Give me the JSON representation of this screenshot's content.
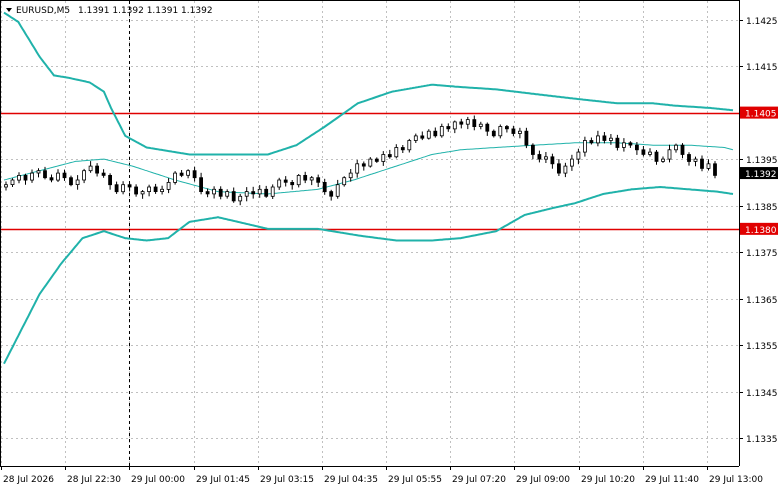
{
  "title": {
    "symbol": "EURUSD,M5",
    "ohlc": "1.1391 1.1392 1.1391 1.1392",
    "menu_icon": "triangle-down-icon"
  },
  "colors": {
    "background": "#ffffff",
    "grid": "#c0c0c0",
    "axis": "#000000",
    "bollinger": "#20b2aa",
    "hline": "#e00000",
    "hline_label_text": "#ffffff",
    "price_label_bg": "#000000",
    "price_label_text": "#ffffff",
    "candle_up": "#ffffff",
    "candle_down": "#000000"
  },
  "chart_data": {
    "type": "candlestick",
    "timeframe": "M5",
    "ylim": [
      1.1329,
      1.1429
    ],
    "yticks": [
      "1.1425",
      "1.1415",
      "1.1405",
      "1.1395",
      "1.1385",
      "1.1375",
      "1.1365",
      "1.1355",
      "1.1345",
      "1.1335"
    ],
    "xticks": [
      "28 Jul 2026",
      "28 Jul 22:30",
      "29 Jul 00:00",
      "29 Jul 01:45",
      "29 Jul 03:15",
      "29 Jul 04:35",
      "29 Jul 05:55",
      "29 Jul 07:20",
      "29 Jul 09:00",
      "29 Jul 10:20",
      "29 Jul 11:40",
      "29 Jul 13:00"
    ],
    "grid": true,
    "current_price": "1.1392",
    "hlines": [
      {
        "label": "1.1405",
        "value": 1.1405
      },
      {
        "label": "1.1380",
        "value": 1.138
      }
    ],
    "vline_at": "29 Jul 00:00",
    "close": [
      1.13895,
      1.13905,
      1.13915,
      1.13905,
      1.1392,
      1.13925,
      1.1391,
      1.13905,
      1.1392,
      1.1391,
      1.13895,
      1.13905,
      1.13925,
      1.13935,
      1.1392,
      1.13915,
      1.13895,
      1.1388,
      1.13895,
      1.1389,
      1.13875,
      1.1388,
      1.1389,
      1.1388,
      1.13885,
      1.139,
      1.1392,
      1.13915,
      1.13925,
      1.1391,
      1.1388,
      1.13875,
      1.13885,
      1.1387,
      1.1388,
      1.1386,
      1.1387,
      1.1388,
      1.13875,
      1.13885,
      1.1387,
      1.1389,
      1.13905,
      1.139,
      1.13895,
      1.13915,
      1.13905,
      1.1391,
      1.139,
      1.1388,
      1.1387,
      1.13895,
      1.1391,
      1.1392,
      1.1394,
      1.13935,
      1.1395,
      1.13945,
      1.1396,
      1.13955,
      1.13975,
      1.1397,
      1.1399,
      1.14,
      1.13995,
      1.1401,
      1.14,
      1.1402,
      1.14015,
      1.1403,
      1.14025,
      1.14035,
      1.1402,
      1.14025,
      1.1401,
      1.14,
      1.1402,
      1.14015,
      1.14005,
      1.1401,
      1.1398,
      1.1396,
      1.1395,
      1.13955,
      1.1394,
      1.1392,
      1.13935,
      1.1395,
      1.13965,
      1.1399,
      1.13985,
      1.14,
      1.1399,
      1.13995,
      1.13975,
      1.13985,
      1.1398,
      1.1397,
      1.1396,
      1.13965,
      1.13945,
      1.1395,
      1.1397,
      1.1398,
      1.1396,
      1.13945,
      1.1395,
      1.1393,
      1.1394,
      1.13915
    ],
    "bollinger_upper": [
      [
        0,
        1.14265
      ],
      [
        10,
        1.14245
      ],
      [
        25,
        1.1417
      ],
      [
        35,
        1.1413
      ],
      [
        45,
        1.14125
      ],
      [
        60,
        1.14115
      ],
      [
        70,
        1.14095
      ],
      [
        75,
        1.1406
      ],
      [
        85,
        1.14
      ],
      [
        100,
        1.13975
      ],
      [
        130,
        1.1396
      ],
      [
        160,
        1.1396
      ],
      [
        185,
        1.1396
      ],
      [
        205,
        1.1398
      ],
      [
        225,
        1.1402
      ],
      [
        248,
        1.1407
      ],
      [
        272,
        1.14095
      ],
      [
        300,
        1.1411
      ],
      [
        320,
        1.14105
      ],
      [
        345,
        1.141
      ],
      [
        372,
        1.1409
      ],
      [
        400,
        1.1408
      ],
      [
        430,
        1.1407
      ],
      [
        455,
        1.1407
      ],
      [
        470,
        1.14065
      ],
      [
        495,
        1.1406
      ],
      [
        511,
        1.14055
      ]
    ],
    "bollinger_middle": [
      [
        0,
        1.13905
      ],
      [
        25,
        1.13925
      ],
      [
        50,
        1.13945
      ],
      [
        70,
        1.1395
      ],
      [
        90,
        1.13935
      ],
      [
        120,
        1.13905
      ],
      [
        150,
        1.1388
      ],
      [
        185,
        1.13875
      ],
      [
        220,
        1.13885
      ],
      [
        245,
        1.13905
      ],
      [
        275,
        1.13935
      ],
      [
        300,
        1.1396
      ],
      [
        320,
        1.1397
      ],
      [
        345,
        1.13975
      ],
      [
        372,
        1.1398
      ],
      [
        400,
        1.13985
      ],
      [
        430,
        1.13985
      ],
      [
        455,
        1.1398
      ],
      [
        480,
        1.1398
      ],
      [
        505,
        1.13975
      ],
      [
        511,
        1.1397
      ]
    ],
    "bollinger_lower": [
      [
        0,
        1.1351
      ],
      [
        10,
        1.1357
      ],
      [
        25,
        1.1366
      ],
      [
        40,
        1.13725
      ],
      [
        55,
        1.1378
      ],
      [
        70,
        1.13795
      ],
      [
        85,
        1.1378
      ],
      [
        100,
        1.13775
      ],
      [
        115,
        1.1378
      ],
      [
        130,
        1.13815
      ],
      [
        150,
        1.13825
      ],
      [
        185,
        1.138
      ],
      [
        220,
        1.138
      ],
      [
        250,
        1.13785
      ],
      [
        275,
        1.13775
      ],
      [
        300,
        1.13775
      ],
      [
        320,
        1.1378
      ],
      [
        345,
        1.13795
      ],
      [
        365,
        1.1383
      ],
      [
        385,
        1.13845
      ],
      [
        400,
        1.13855
      ],
      [
        420,
        1.13875
      ],
      [
        440,
        1.13885
      ],
      [
        460,
        1.1389
      ],
      [
        480,
        1.13885
      ],
      [
        500,
        1.1388
      ],
      [
        511,
        1.13875
      ]
    ]
  }
}
